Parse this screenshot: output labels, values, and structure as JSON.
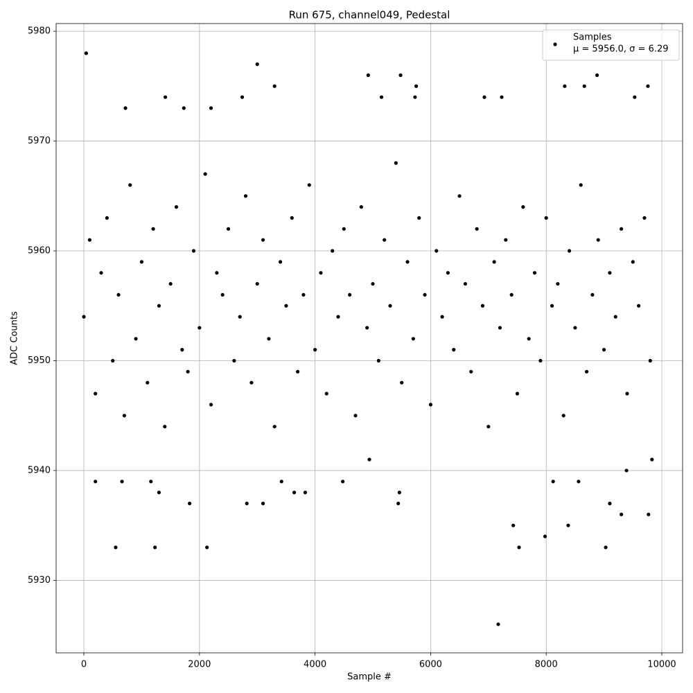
{
  "chart_data": {
    "type": "scatter",
    "title": "Run 675, channel049, Pedestal",
    "x_label": "Sample #",
    "y_label": "ADC Counts",
    "xlim": [
      -480,
      10360
    ],
    "ylim": [
      5923.4,
      5980.7
    ],
    "xticks": [
      0,
      2000,
      4000,
      6000,
      8000,
      10000
    ],
    "yticks": [
      5930,
      5940,
      5950,
      5960,
      5970,
      5980
    ],
    "grid": true,
    "legend": "upper right",
    "legend_note": "μ = 5956.0, σ = 6.29",
    "series": [
      {
        "name": "Samples",
        "color": "#000000",
        "x": [
          0,
          100,
          200,
          300,
          400,
          500,
          600,
          700,
          800,
          900,
          1000,
          1100,
          1200,
          1300,
          1400,
          1500,
          1600,
          1700,
          1800,
          1900,
          2000,
          2100,
          2200,
          2300,
          2400,
          2500,
          2600,
          2700,
          2800,
          2900,
          3000,
          3100,
          3200,
          3300,
          3400,
          3500,
          3600,
          3700,
          3800,
          3900,
          4000,
          4100,
          4200,
          4300,
          4400,
          4500,
          4600,
          4700,
          4800,
          4900,
          5000,
          5100,
          5200,
          5300,
          5400,
          5500,
          5600,
          5700,
          5800,
          5900,
          6000,
          6100,
          6200,
          6300,
          6400,
          6500,
          6600,
          6700,
          6800,
          6900,
          7000,
          7100,
          7200,
          7300,
          7400,
          7500,
          7600,
          7700,
          7800,
          7900,
          8000,
          8100,
          8200,
          8300,
          8400,
          8500,
          8600,
          8700,
          8800,
          8900,
          9000,
          9100,
          9200,
          9300,
          9400,
          9500,
          9600,
          9700,
          9800,
          40,
          3000,
          4920,
          5480,
          8880,
          3300,
          5750,
          8320,
          8660,
          9760,
          1410,
          2740,
          5150,
          5730,
          6930,
          7230,
          9530,
          720,
          1730,
          2200,
          550,
          1230,
          2130,
          7530,
          9030,
          7170,
          7430,
          7980,
          8380,
          9300,
          9770,
          1830,
          2820,
          3100,
          5440,
          9100,
          1300,
          3640,
          3830,
          5460,
          200,
          660,
          1160,
          3420,
          4480,
          8120,
          8560,
          9390,
          4940,
          9830
        ],
        "values": [
          5954,
          5961,
          5947,
          5958,
          5963,
          5950,
          5956,
          5945,
          5966,
          5952,
          5959,
          5948,
          5962,
          5955,
          5944,
          5957,
          5964,
          5951,
          5949,
          5960,
          5953,
          5967,
          5946,
          5958,
          5956,
          5962,
          5950,
          5954,
          5965,
          5948,
          5957,
          5961,
          5952,
          5944,
          5959,
          5955,
          5963,
          5949,
          5956,
          5966,
          5951,
          5958,
          5947,
          5960,
          5954,
          5962,
          5956,
          5945,
          5964,
          5953,
          5957,
          5950,
          5961,
          5955,
          5968,
          5948,
          5959,
          5952,
          5963,
          5956,
          5946,
          5960,
          5954,
          5958,
          5951,
          5965,
          5957,
          5949,
          5962,
          5955,
          5944,
          5959,
          5953,
          5961,
          5956,
          5947,
          5964,
          5952,
          5958,
          5950,
          5963,
          5955,
          5957,
          5945,
          5960,
          5953,
          5966,
          5949,
          5956,
          5961,
          5951,
          5958,
          5954,
          5962,
          5947,
          5959,
          5955,
          5963,
          5950,
          5978,
          5977,
          5976,
          5976,
          5976,
          5975,
          5975,
          5975,
          5975,
          5975,
          5974,
          5974,
          5974,
          5974,
          5974,
          5974,
          5974,
          5973,
          5973,
          5973,
          5933,
          5933,
          5933,
          5933,
          5933,
          5926,
          5935,
          5934,
          5935,
          5936,
          5936,
          5937,
          5937,
          5937,
          5937,
          5937,
          5938,
          5938,
          5938,
          5938,
          5939,
          5939,
          5939,
          5939,
          5939,
          5939,
          5939,
          5940,
          5941,
          5941
        ]
      }
    ]
  }
}
